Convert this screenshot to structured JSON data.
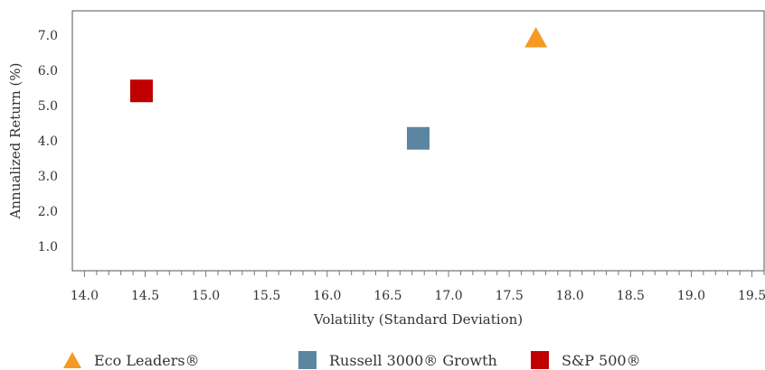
{
  "chart_data": {
    "type": "scatter",
    "xlabel": "Volatility (Standard Deviation)",
    "ylabel": "Annualized Return (%)",
    "xlim": [
      13.9,
      19.6
    ],
    "ylim": [
      0.3,
      7.7
    ],
    "x_ticks": [
      "14.0",
      "14.5",
      "15.0",
      "15.5",
      "16.0",
      "16.5",
      "17.0",
      "17.5",
      "18.0",
      "18.5",
      "19.0",
      "19.5"
    ],
    "y_ticks": [
      "1.0",
      "2.0",
      "3.0",
      "4.0",
      "5.0",
      "6.0",
      "7.0"
    ],
    "grid": false,
    "legend_position": "bottom",
    "series": [
      {
        "name": "Eco Leaders®",
        "x": 17.72,
        "y": 6.95,
        "marker": "triangle",
        "color": "#F59A23"
      },
      {
        "name": "Russell 3000® Growth",
        "x": 16.75,
        "y": 4.07,
        "marker": "square",
        "color": "#5B85A0"
      },
      {
        "name": "S&P 500®",
        "x": 14.47,
        "y": 5.42,
        "marker": "square",
        "color": "#C00000"
      }
    ]
  }
}
